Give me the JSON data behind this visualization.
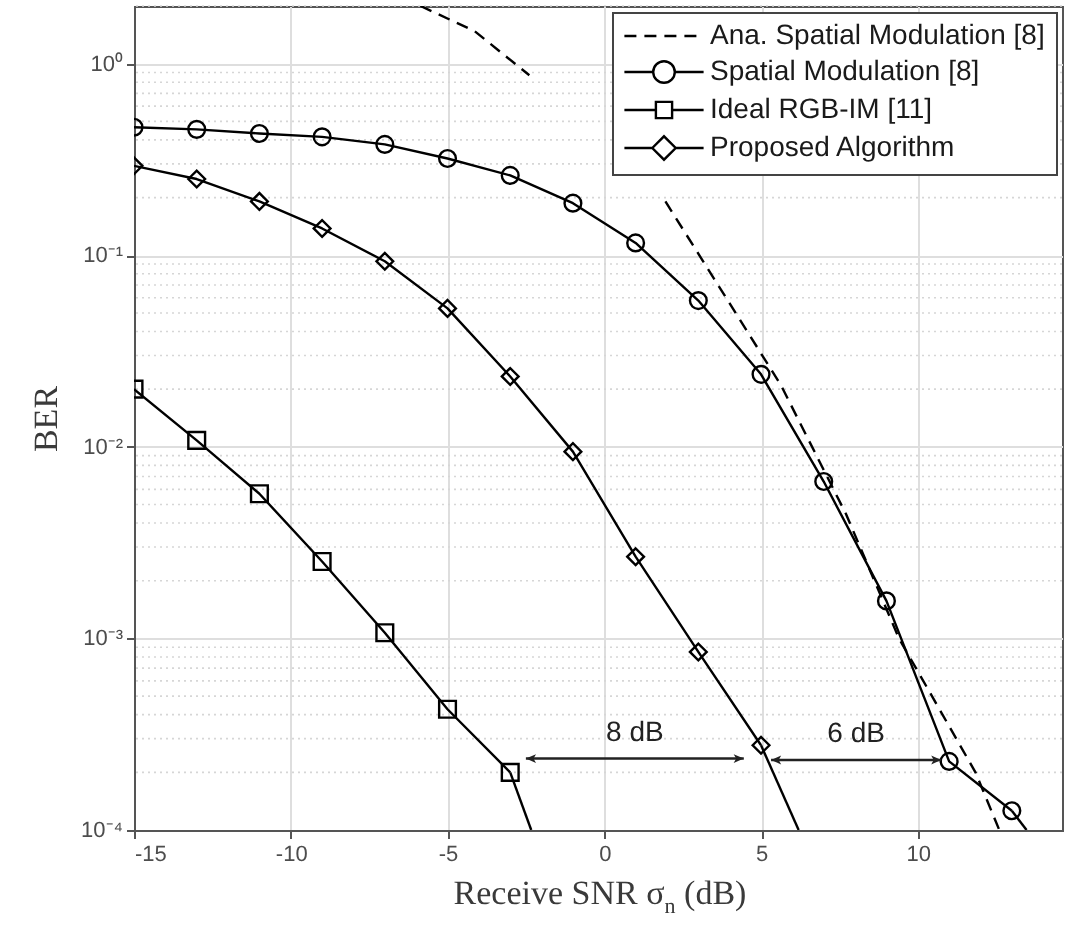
{
  "chart_data": {
    "type": "line",
    "xlabel": "Receive SNR σ$_{n}$ (dB)",
    "ylabel": "BER",
    "log": "y",
    "grid": true,
    "legend": "top right",
    "xlim": [
      -15,
      14.6
    ],
    "xticks": [
      -15,
      -10,
      -5,
      0,
      5,
      10
    ],
    "ylim": [
      0.0001,
      2
    ],
    "yticks": [
      {
        "value": 0.0001,
        "label": "10⁻⁴"
      },
      {
        "value": 0.001,
        "label": "10⁻³"
      },
      {
        "value": 0.01,
        "label": "10⁻²"
      },
      {
        "value": 0.1,
        "label": "10⁻¹"
      },
      {
        "value": 1,
        "label": "10⁰"
      }
    ],
    "series": [
      {
        "name": "Ana. Spatial Modulation [8]",
        "color": "#000000",
        "line_style": "dashed",
        "marker": "none",
        "x": [
          -5.86,
          -4.14,
          -2.39,
          0,
          1.95,
          4.55,
          5.64,
          7.71,
          9.4,
          11.84,
          12.6
        ],
        "values": [
          2,
          1.48,
          0.87,
          null,
          0.191,
          0.0403,
          0.0209,
          0.00446,
          0.001,
          0.0002,
          0.0001
        ]
      },
      {
        "name": "Spatial Modulation [8]",
        "color": "#000000",
        "line_style": "solid",
        "marker": "circle",
        "x": [
          -15,
          -13,
          -11,
          -9,
          -7,
          -5,
          -3,
          -1,
          1,
          3,
          5,
          7,
          9,
          11,
          13
        ],
        "values": [
          0.466,
          0.454,
          0.432,
          0.415,
          0.379,
          0.32,
          0.261,
          0.187,
          0.116,
          0.058,
          0.0239,
          0.00659,
          0.00157,
          0.000228,
          0.000126
        ]
      },
      {
        "name": "Ideal RGB-IM [11]",
        "color": "#000000",
        "line_style": "solid",
        "marker": "square",
        "x": [
          -15,
          -13,
          -11,
          -9,
          -7,
          -5,
          -3
        ],
        "values": [
          0.02,
          0.0108,
          0.00569,
          0.00252,
          0.00107,
          0.000427,
          0.0002
        ]
      },
      {
        "name": "Proposed Algorithm",
        "color": "#000000",
        "line_style": "solid",
        "marker": "diamond",
        "x": [
          -15,
          -13,
          -11,
          -9,
          -7,
          -5,
          -3,
          -1,
          1,
          3,
          5
        ],
        "values": [
          0.293,
          0.25,
          0.191,
          0.138,
          0.093,
          0.0528,
          0.0233,
          0.00944,
          0.00267,
          0.00085,
          0.000277
        ]
      },
      {
        "type": "line",
        "color": "#000000",
        "line_style": "solid",
        "marker": "none",
        "x": [
          13,
          13.47
        ],
        "values": [
          0.000126,
          0.0001
        ]
      },
      {
        "type": "line",
        "color": "#000000",
        "line_style": "solid",
        "marker": "none",
        "x": [
          -3,
          -2.33
        ],
        "values": [
          0.0002,
          0.0001
        ]
      },
      {
        "type": "line",
        "color": "#000000",
        "line_style": "solid",
        "marker": "none",
        "x": [
          5,
          6.2
        ],
        "values": [
          0.000277,
          0.0001
        ]
      }
    ],
    "annotations": [
      "8 dB",
      "6 dB"
    ]
  }
}
